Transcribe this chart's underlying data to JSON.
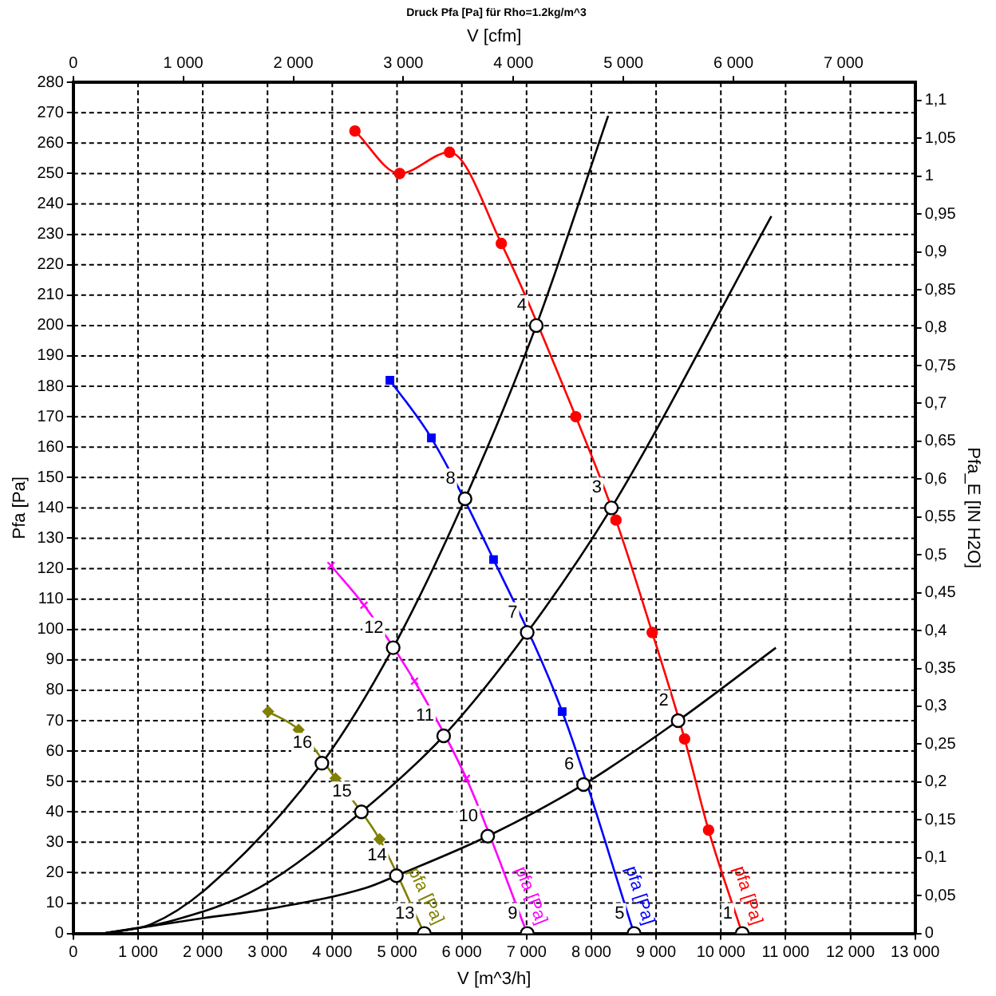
{
  "chart_data": {
    "type": "line",
    "title": "Druck Pfa [Pa] für Rho=1.2kg/m^3",
    "xlabel": "V [m^3/h]",
    "x2label": "V [cfm]",
    "ylabel": "Pfa [Pa]",
    "y2label": "Pfa_E [IN H2O]",
    "xlim": [
      0,
      13000
    ],
    "xticks": [
      0,
      {
        "value": 1000,
        "label": "1 000"
      },
      {
        "value": 2000,
        "label": "2 000"
      },
      {
        "value": 3000,
        "label": "3 000"
      },
      {
        "value": 4000,
        "label": "4 000"
      },
      {
        "value": 5000,
        "label": "5 000"
      },
      {
        "value": 6000,
        "label": "6 000"
      },
      {
        "value": 7000,
        "label": "7 000"
      },
      {
        "value": 8000,
        "label": "8 000"
      },
      {
        "value": 9000,
        "label": "9 000"
      },
      {
        "value": 10000,
        "label": "10 000"
      },
      {
        "value": 11000,
        "label": "11 000"
      },
      {
        "value": 12000,
        "label": "12 000"
      },
      {
        "value": 13000,
        "label": "13 000"
      }
    ],
    "x2lim": [
      0,
      7651
    ],
    "x2ticks": [
      0,
      {
        "value": 1000,
        "label": "1 000"
      },
      {
        "value": 2000,
        "label": "2 000"
      },
      {
        "value": 3000,
        "label": "3 000"
      },
      {
        "value": 4000,
        "label": "4 000"
      },
      {
        "value": 5000,
        "label": "5 000"
      },
      {
        "value": 6000,
        "label": "6 000"
      },
      {
        "value": 7000,
        "label": "7 000"
      }
    ],
    "ylim": [
      0,
      280
    ],
    "yticks": [
      0,
      10,
      20,
      30,
      40,
      50,
      60,
      70,
      80,
      90,
      100,
      110,
      120,
      130,
      140,
      150,
      160,
      170,
      180,
      190,
      200,
      210,
      220,
      230,
      240,
      250,
      260,
      270,
      280
    ],
    "y2lim": [
      0,
      1.124
    ],
    "y2ticks": [
      0,
      {
        "value": 0.05,
        "label": "0,05"
      },
      {
        "value": 0.1,
        "label": "0,1"
      },
      {
        "value": 0.15,
        "label": "0,15"
      },
      {
        "value": 0.2,
        "label": "0,2"
      },
      {
        "value": 0.25,
        "label": "0,25"
      },
      {
        "value": 0.3,
        "label": "0,3"
      },
      {
        "value": 0.35,
        "label": "0,35"
      },
      {
        "value": 0.4,
        "label": "0,4"
      },
      {
        "value": 0.45,
        "label": "0,45"
      },
      {
        "value": 0.5,
        "label": "0,5"
      },
      {
        "value": 0.55,
        "label": "0,55"
      },
      {
        "value": 0.6,
        "label": "0,6"
      },
      {
        "value": 0.65,
        "label": "0,65"
      },
      {
        "value": 0.7,
        "label": "0,7"
      },
      {
        "value": 0.75,
        "label": "0,75"
      },
      {
        "value": 0.8,
        "label": "0,8"
      },
      {
        "value": 0.85,
        "label": "0,85"
      },
      {
        "value": 0.9,
        "label": "0,9"
      },
      {
        "value": 0.95,
        "label": "0,95"
      },
      {
        "value": 1,
        "label": "1"
      },
      {
        "value": 1.05,
        "label": "1,05"
      },
      {
        "value": 1.1,
        "label": "1,1"
      }
    ],
    "grid": true,
    "legend": false,
    "series": [
      {
        "type": "line",
        "color": "#000000",
        "marker": "none",
        "x": [
          470,
          1200,
          2070,
          3840,
          4940,
          6050,
          7150,
          8260
        ],
        "values": [
          0,
          3,
          15,
          56,
          94,
          143,
          200,
          269
        ]
      },
      {
        "type": "line",
        "color": "#000000",
        "marker": "none",
        "x": [
          470,
          1500,
          2870,
          4450,
          5720,
          7010,
          8310,
          10780
        ],
        "values": [
          0,
          4,
          15,
          40,
          65,
          99,
          140,
          236
        ]
      },
      {
        "type": "line",
        "color": "#000000",
        "marker": "none",
        "x": [
          470,
          2000,
          3000,
          4520,
          4990,
          6400,
          7880,
          9340,
          10850
        ],
        "values": [
          0,
          5,
          8,
          15,
          19,
          32,
          49,
          70,
          94
        ]
      },
      {
        "type": "line",
        "name": "pfa [Pa]",
        "color": "#ff0000",
        "marker": "circle",
        "x": [
          4350,
          5040,
          5810,
          6610,
          7760,
          8380,
          8940,
          9440,
          9810,
          10330
        ],
        "values": [
          264,
          250,
          257,
          227,
          170,
          136,
          99,
          64,
          34,
          0
        ]
      },
      {
        "type": "line",
        "name": "pfa [Pa]",
        "color": "#0000ff",
        "marker": "square",
        "x": [
          4890,
          5530,
          6490,
          7550,
          8660
        ],
        "values": [
          182,
          163,
          123,
          73,
          0
        ]
      },
      {
        "type": "line",
        "name": "pfa [Pa]",
        "color": "#ff00ff",
        "marker": "cross",
        "x": [
          3980,
          4490,
          5270,
          6070,
          7010
        ],
        "values": [
          121,
          108,
          83,
          51,
          0
        ]
      },
      {
        "type": "line",
        "name": "pfa [Pa]",
        "color": "#808000",
        "marker": "diamond",
        "x": [
          3010,
          3480,
          4050,
          4730,
          5420
        ],
        "values": [
          73,
          67,
          51,
          31,
          0
        ]
      },
      {
        "type": "scatter",
        "color": "#000000",
        "marker": "circle",
        "x": [
          10330,
          9340,
          8310,
          7150,
          8660,
          7880,
          7010,
          6050,
          7010,
          6400,
          5720,
          4940,
          5420,
          4990,
          4450,
          3840
        ],
        "values": [
          0,
          70,
          140,
          200,
          0,
          49,
          99,
          143,
          0,
          32,
          65,
          94,
          0,
          19,
          40,
          56
        ]
      }
    ],
    "annotations": [
      {
        "text": "1",
        "x": 10330,
        "y": 0
      },
      {
        "text": "2",
        "x": 9340,
        "y": 70
      },
      {
        "text": "3",
        "x": 8310,
        "y": 140
      },
      {
        "text": "4",
        "x": 7150,
        "y": 200
      },
      {
        "text": "5",
        "x": 8660,
        "y": 0
      },
      {
        "text": "6",
        "x": 7880,
        "y": 49
      },
      {
        "text": "7",
        "x": 7010,
        "y": 99
      },
      {
        "text": "8",
        "x": 6050,
        "y": 143
      },
      {
        "text": "9",
        "x": 7010,
        "y": 0
      },
      {
        "text": "10",
        "x": 6400,
        "y": 32
      },
      {
        "text": "11",
        "x": 5720,
        "y": 65
      },
      {
        "text": "12",
        "x": 4940,
        "y": 94
      },
      {
        "text": "13",
        "x": 5420,
        "y": 0
      },
      {
        "text": "14",
        "x": 4990,
        "y": 19
      },
      {
        "text": "15",
        "x": 4450,
        "y": 40
      },
      {
        "text": "16",
        "x": 3840,
        "y": 56
      }
    ]
  }
}
